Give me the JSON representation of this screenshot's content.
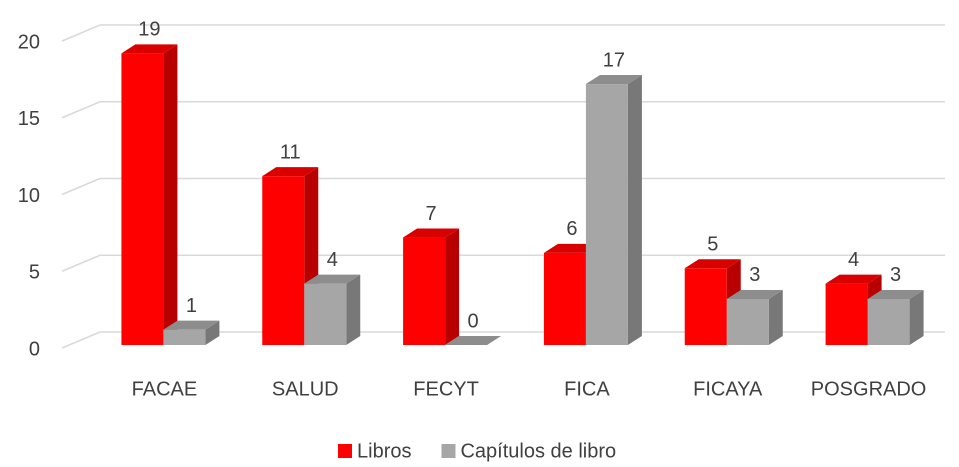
{
  "chart_data": {
    "type": "bar3d",
    "categories": [
      "FACAE",
      "SALUD",
      "FECYT",
      "FICA",
      "FICAYA",
      "POSGRADO"
    ],
    "series": [
      {
        "name": "Libros",
        "color": "#ff0000",
        "values": [
          19,
          11,
          7,
          6,
          5,
          4
        ]
      },
      {
        "name": "Capítulos de libro",
        "color": "#a6a6a6",
        "values": [
          1,
          4,
          0,
          17,
          3,
          3
        ]
      }
    ],
    "ylim": [
      0,
      20
    ],
    "yticks": [
      0,
      5,
      10,
      15,
      20
    ],
    "grid": true,
    "legend": "bottom"
  }
}
